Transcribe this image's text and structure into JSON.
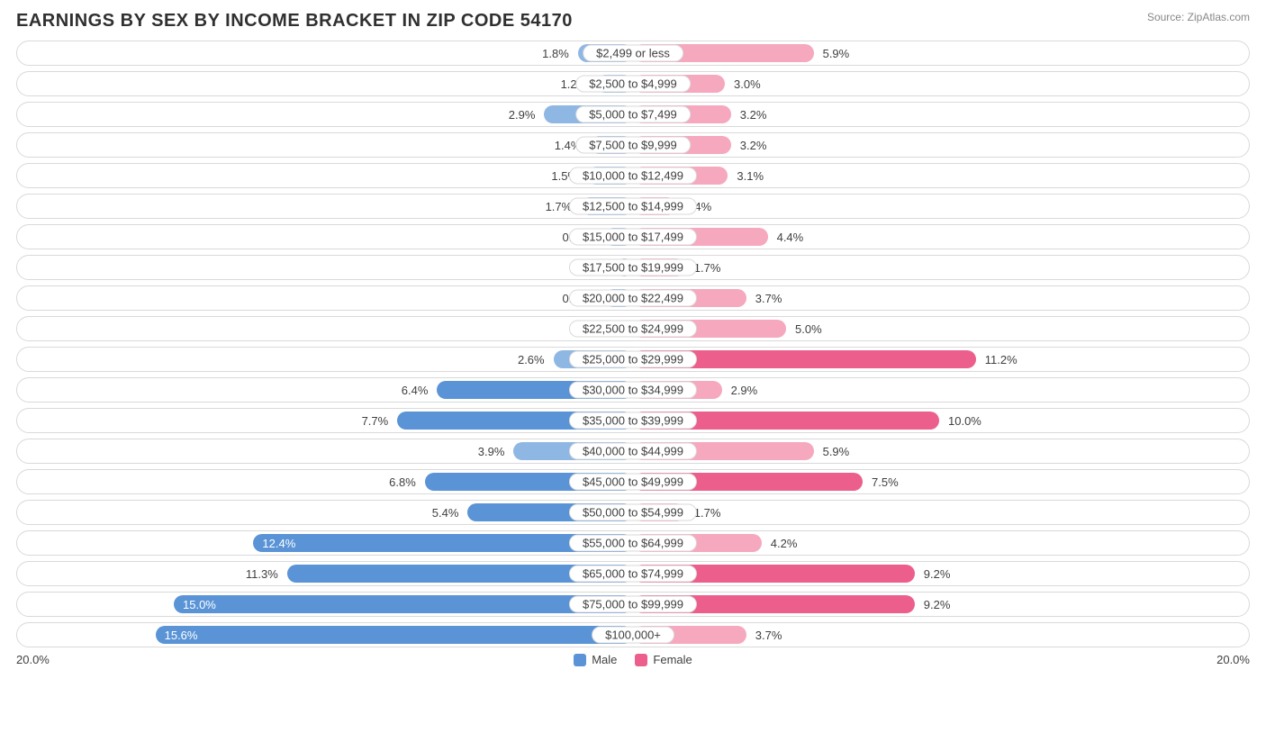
{
  "title": "EARNINGS BY SEX BY INCOME BRACKET IN ZIP CODE 54170",
  "source": "Source: ZipAtlas.com",
  "axis_max_pct": 20.0,
  "axis_label_left": "20.0%",
  "axis_label_right": "20.0%",
  "colors": {
    "male_light": "#8fb7e3",
    "male_dark": "#5a94d6",
    "female_light": "#f5a8be",
    "female_dark": "#ec5e8b",
    "row_border": "#d9d9d9",
    "text": "#404040",
    "title": "#303030",
    "source": "#888888"
  },
  "legend": {
    "male_label": "Male",
    "female_label": "Female",
    "male_color": "#5a94d6",
    "female_color": "#ec5e8b"
  },
  "inside_label_threshold_pct": 11.5,
  "rows": [
    {
      "bracket": "$2,499 or less",
      "male": 1.8,
      "female": 5.9,
      "male_shade": "light",
      "female_shade": "light"
    },
    {
      "bracket": "$2,500 to $4,999",
      "male": 1.2,
      "female": 3.0,
      "male_shade": "light",
      "female_shade": "light"
    },
    {
      "bracket": "$5,000 to $7,499",
      "male": 2.9,
      "female": 3.2,
      "male_shade": "light",
      "female_shade": "light"
    },
    {
      "bracket": "$7,500 to $9,999",
      "male": 1.4,
      "female": 3.2,
      "male_shade": "light",
      "female_shade": "light"
    },
    {
      "bracket": "$10,000 to $12,499",
      "male": 1.5,
      "female": 3.1,
      "male_shade": "light",
      "female_shade": "light"
    },
    {
      "bracket": "$12,500 to $14,999",
      "male": 1.7,
      "female": 1.4,
      "male_shade": "light",
      "female_shade": "light"
    },
    {
      "bracket": "$15,000 to $17,499",
      "male": 0.93,
      "female": 4.4,
      "male_shade": "light",
      "female_shade": "light"
    },
    {
      "bracket": "$17,500 to $19,999",
      "male": 0.56,
      "female": 1.7,
      "male_shade": "light",
      "female_shade": "light"
    },
    {
      "bracket": "$20,000 to $22,499",
      "male": 0.93,
      "female": 3.7,
      "male_shade": "light",
      "female_shade": "light"
    },
    {
      "bracket": "$22,500 to $24,999",
      "male": 0.0,
      "female": 5.0,
      "male_shade": "light",
      "female_shade": "light"
    },
    {
      "bracket": "$25,000 to $29,999",
      "male": 2.6,
      "female": 11.2,
      "male_shade": "light",
      "female_shade": "dark"
    },
    {
      "bracket": "$30,000 to $34,999",
      "male": 6.4,
      "female": 2.9,
      "male_shade": "dark",
      "female_shade": "light"
    },
    {
      "bracket": "$35,000 to $39,999",
      "male": 7.7,
      "female": 10.0,
      "male_shade": "dark",
      "female_shade": "dark"
    },
    {
      "bracket": "$40,000 to $44,999",
      "male": 3.9,
      "female": 5.9,
      "male_shade": "light",
      "female_shade": "light"
    },
    {
      "bracket": "$45,000 to $49,999",
      "male": 6.8,
      "female": 7.5,
      "male_shade": "dark",
      "female_shade": "dark"
    },
    {
      "bracket": "$50,000 to $54,999",
      "male": 5.4,
      "female": 1.7,
      "male_shade": "dark",
      "female_shade": "light"
    },
    {
      "bracket": "$55,000 to $64,999",
      "male": 12.4,
      "female": 4.2,
      "male_shade": "dark",
      "female_shade": "light"
    },
    {
      "bracket": "$65,000 to $74,999",
      "male": 11.3,
      "female": 9.2,
      "male_shade": "dark",
      "female_shade": "dark"
    },
    {
      "bracket": "$75,000 to $99,999",
      "male": 15.0,
      "female": 9.2,
      "male_shade": "dark",
      "female_shade": "dark"
    },
    {
      "bracket": "$100,000+",
      "male": 15.6,
      "female": 3.7,
      "male_shade": "dark",
      "female_shade": "light"
    }
  ]
}
